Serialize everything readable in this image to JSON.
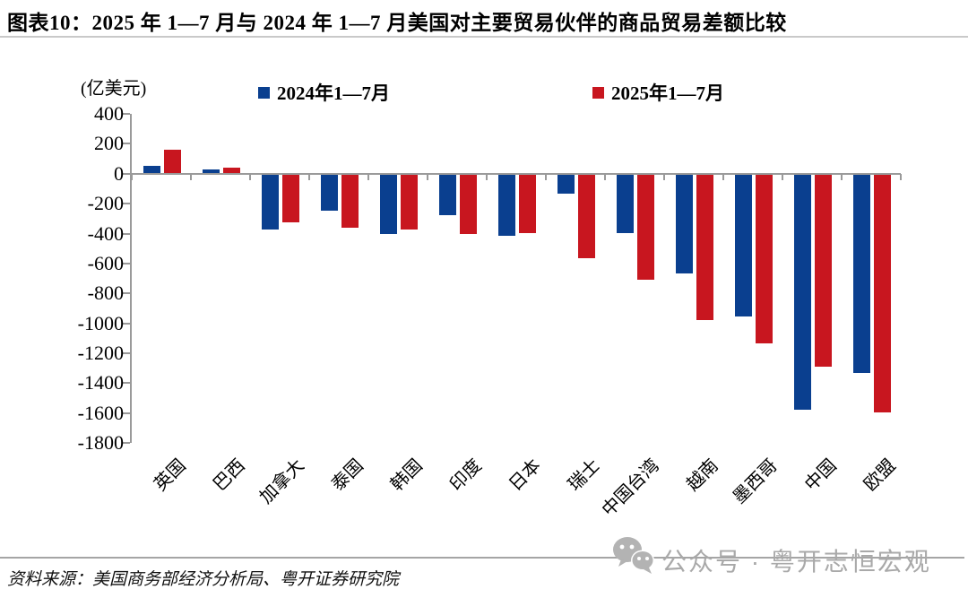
{
  "header": {
    "title": "图表10：2025 年 1—7 月与 2024 年 1—7 月美国对主要贸易伙伴的商品贸易差额比较"
  },
  "footer": {
    "source": "资料来源：美国商务部经济分析局、粤开证券研究院",
    "watermark": {
      "icon": "wechat-icon",
      "text": "公众号 · 粤开志恒宏观"
    }
  },
  "chart_data": {
    "type": "bar",
    "title": "2025年1—7月与2024年1—7月美国对主要贸易伙伴的商品贸易差额比较",
    "unit_label": "(亿美元)",
    "ylabel": "亿美元",
    "xlabel": "",
    "categories": [
      "英国",
      "巴西",
      "加拿大",
      "泰国",
      "韩国",
      "印度",
      "日本",
      "瑞士",
      "中国台湾",
      "越南",
      "墨西哥",
      "中国",
      "欧盟"
    ],
    "series": [
      {
        "name": "2024年1—7月",
        "color": "#0a3f8f",
        "values": [
          50,
          30,
          -375,
          -245,
          -405,
          -280,
          -415,
          -135,
          -395,
          -665,
          -955,
          -1580,
          -1330
        ]
      },
      {
        "name": "2025年1—7月",
        "color": "#c8161f",
        "values": [
          160,
          40,
          -325,
          -360,
          -375,
          -405,
          -400,
          -565,
          -710,
          -980,
          -1135,
          -1290,
          -1595
        ]
      }
    ],
    "ylim": [
      -1800,
      400
    ],
    "yticks": [
      400,
      200,
      0,
      -200,
      -400,
      -600,
      -800,
      -1000,
      -1200,
      -1400,
      -1600,
      -1800
    ],
    "grid": false,
    "legend_position": "top"
  }
}
